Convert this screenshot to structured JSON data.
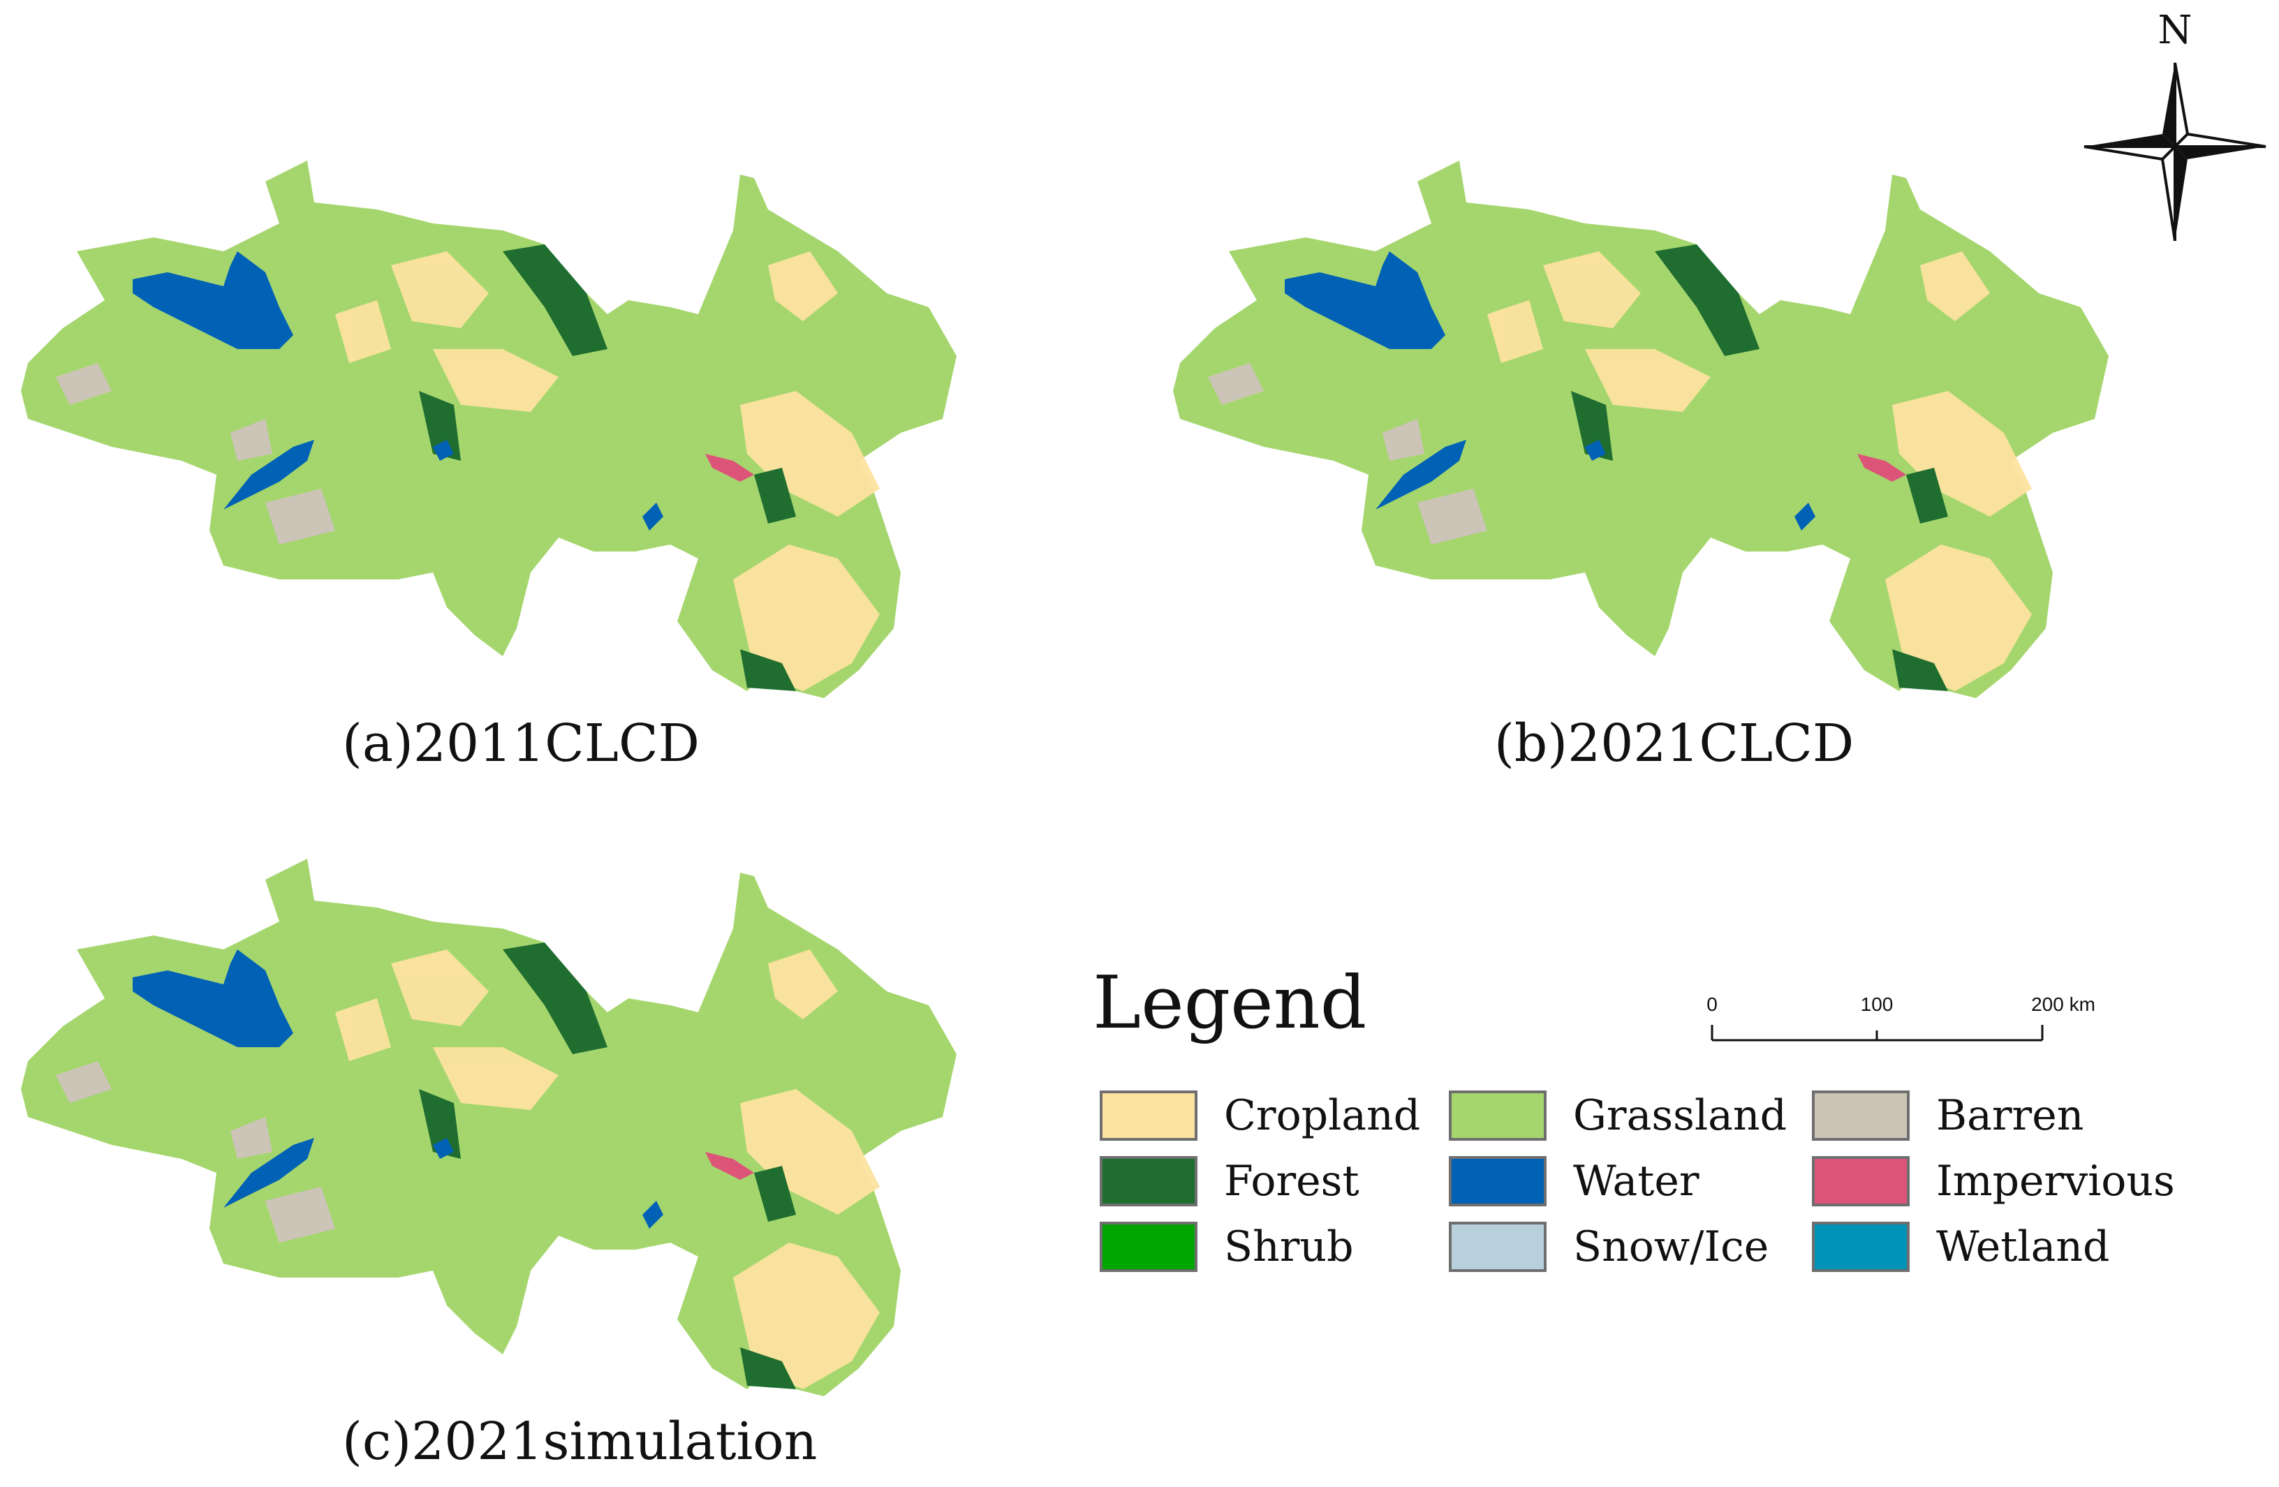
{
  "maps": [
    {
      "id": "a",
      "caption": "(a)2011CLCD"
    },
    {
      "id": "b",
      "caption": "(b)2021CLCD"
    },
    {
      "id": "c",
      "caption": "(c)2021simulation"
    }
  ],
  "north_arrow": {
    "label": "N"
  },
  "legend": {
    "title": "Legend",
    "items": [
      {
        "label": "Cropland",
        "color": "#fce3a0"
      },
      {
        "label": "Forest",
        "color": "#1f6e30"
      },
      {
        "label": "Shrub",
        "color": "#00a600"
      },
      {
        "label": "Grassland",
        "color": "#a5d66e"
      },
      {
        "label": "Water",
        "color": "#0061b5"
      },
      {
        "label": "Snow/Ice",
        "color": "#b8d0db"
      },
      {
        "label": "Barren",
        "color": "#cdc4b8"
      },
      {
        "label": "Impervious",
        "color": "#dd5479"
      },
      {
        "label": "Wetland",
        "color": "#0093b8"
      }
    ]
  },
  "scale_bar": {
    "ticks": [
      "0",
      "100",
      "200 km"
    ]
  }
}
